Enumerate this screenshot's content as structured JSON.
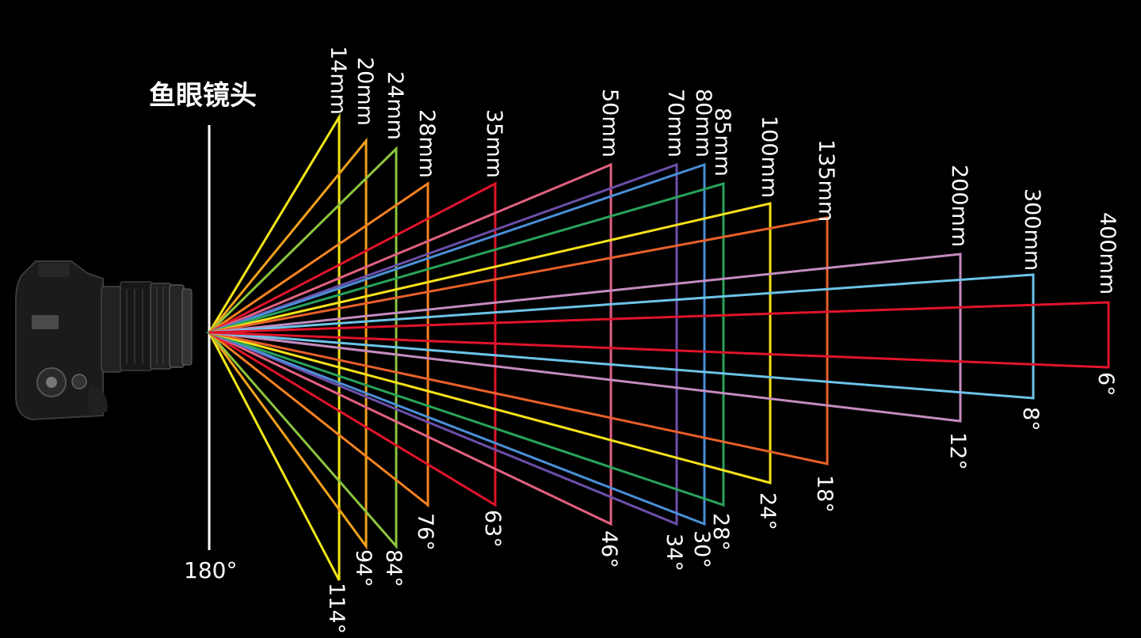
{
  "fisheye": {
    "label": "鱼眼镜头",
    "angle_label": "180°"
  },
  "degree_symbol": "°",
  "lenses": [
    {
      "focal": "14mm",
      "angle": "114",
      "color": "#f2e61a"
    },
    {
      "focal": "20mm",
      "angle": "94",
      "color": "#f3a21b"
    },
    {
      "focal": "24mm",
      "angle": "84",
      "color": "#8dc63f"
    },
    {
      "focal": "28mm",
      "angle": "76",
      "color": "#f58220"
    },
    {
      "focal": "35mm",
      "angle": "63",
      "color": "#e0142a"
    },
    {
      "focal": "50mm",
      "angle": "46",
      "color": "#e2617f"
    },
    {
      "focal": "70mm",
      "angle": "34",
      "color": "#6b4fa8"
    },
    {
      "focal": "80mm",
      "angle": "30",
      "color": "#4a8fd6"
    },
    {
      "focal": "85mm",
      "angle": "28",
      "color": "#29a35a"
    },
    {
      "focal": "100mm",
      "angle": "24",
      "color": "#f7e21a"
    },
    {
      "focal": "135mm",
      "angle": "18",
      "color": "#e8602a"
    },
    {
      "focal": "200mm",
      "angle": "12",
      "color": "#c58bbf"
    },
    {
      "focal": "300mm",
      "angle": "8",
      "color": "#6cc3e8"
    },
    {
      "focal": "400mm",
      "angle": "6",
      "color": "#e0142a"
    }
  ]
}
